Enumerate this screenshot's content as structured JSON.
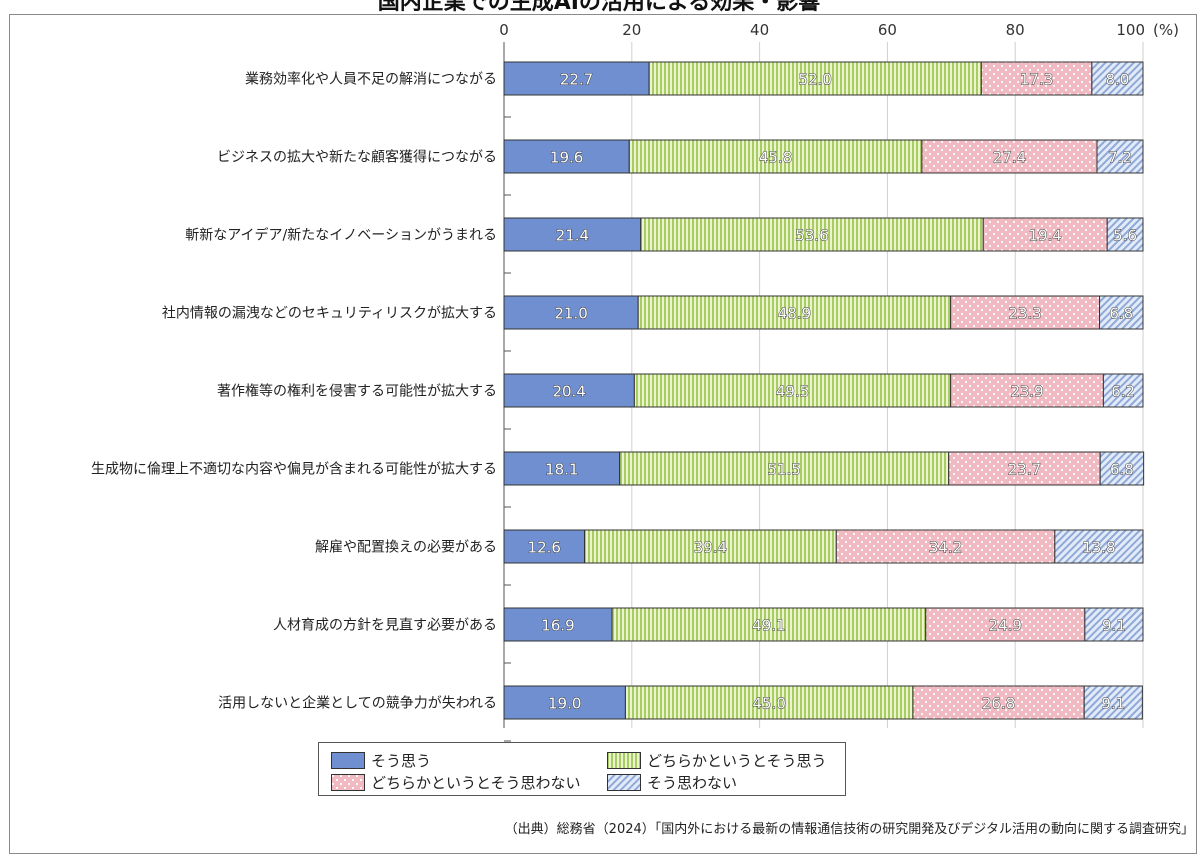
{
  "chart_data": {
    "type": "bar",
    "orientation": "horizontal",
    "stacked": true,
    "title": "国内企業での生成AIの活用による効果・影響",
    "unit": "(%)",
    "xlim": [
      0,
      100
    ],
    "xticks": [
      "0",
      "20",
      "40",
      "60",
      "80",
      "100"
    ],
    "categories": [
      "業務効率化や人員不足の解消につながる",
      "ビジネスの拡大や新たな顧客獲得につながる",
      "斬新なアイデア/新たなイノベーションがうまれる",
      "社内情報の漏洩などのセキュリティリスクが拡大する",
      "著作権等の権利を侵害する可能性が拡大する",
      "生成物に倫理上不適切な内容や偏見が含まれる可能性が拡大する",
      "解雇や配置換えの必要がある",
      "人材育成の方針を見直す必要がある",
      "活用しないと企業としての競争力が失われる"
    ],
    "series": [
      {
        "name": "そう思う",
        "color": "#6f8fd0",
        "pattern": "solid",
        "values": [
          22.7,
          19.6,
          21.4,
          21.0,
          20.4,
          18.1,
          12.6,
          16.9,
          19.0
        ],
        "labels": [
          "22.7",
          "19.6",
          "21.4",
          "21.0",
          "20.4",
          "18.1",
          "12.6",
          "16.9",
          "19.0"
        ]
      },
      {
        "name": "どちらかというとそう思う",
        "color": "#a9cc62",
        "pattern": "vertical-stripes",
        "values": [
          52.0,
          45.8,
          53.6,
          48.9,
          49.5,
          51.5,
          39.4,
          49.1,
          45.0
        ],
        "labels": [
          "52.0",
          "45.8",
          "53.6",
          "48.9",
          "49.5",
          "51.5",
          "39.4",
          "49.1",
          "45.0"
        ]
      },
      {
        "name": "どちらかというとそう思わない",
        "color": "#f1b9c2",
        "pattern": "dots",
        "values": [
          17.3,
          27.4,
          19.4,
          23.3,
          23.9,
          23.7,
          34.2,
          24.9,
          26.8
        ],
        "labels": [
          "17.3",
          "27.4",
          "19.4",
          "23.3",
          "23.9",
          "23.7",
          "34.2",
          "24.9",
          "26.8"
        ]
      },
      {
        "name": "そう思わない",
        "color": "#a9bfe4",
        "pattern": "diagonal",
        "values": [
          8.0,
          7.2,
          5.6,
          6.8,
          6.2,
          6.8,
          13.8,
          9.1,
          9.1
        ],
        "labels": [
          "8.0",
          "7.2",
          "5.6",
          "6.8",
          "6.2",
          "6.8",
          "13.8",
          "9.1",
          "9.1"
        ]
      }
    ],
    "grid": true,
    "legend_position": "bottom"
  },
  "source": "（出典）総務省（2024）「国内外における最新の情報通信技術の研究開発及びデジタル活用の動向に関する調査研究」"
}
